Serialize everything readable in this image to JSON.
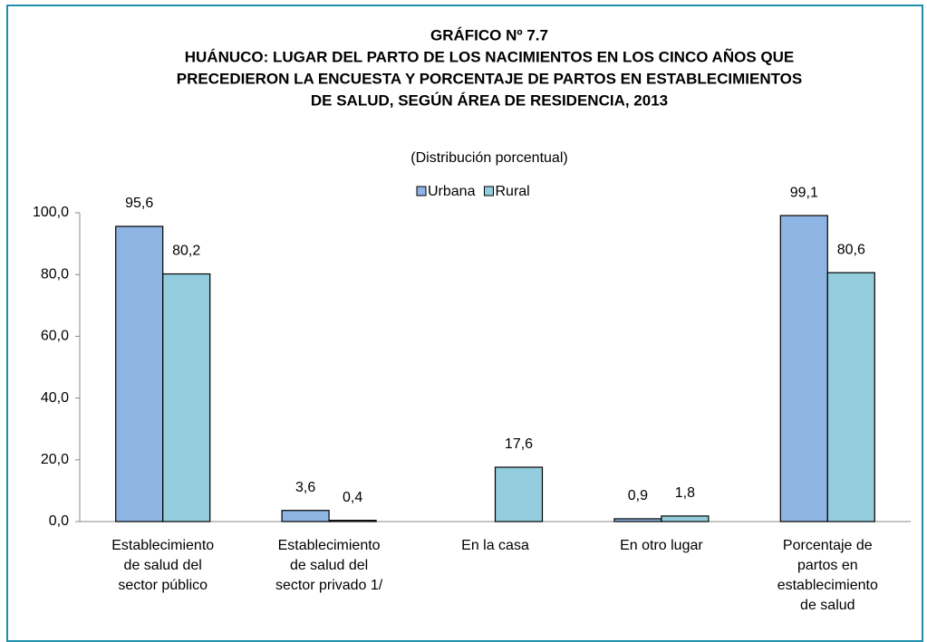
{
  "chart_data": {
    "type": "bar",
    "title": [
      "GRÁFICO Nº 7.7",
      "HUÁNUCO: LUGAR DEL PARTO DE LOS NACIMIENTOS EN LOS CINCO AÑOS QUE",
      "PRECEDIERON LA ENCUESTA Y PORCENTAJE DE PARTOS EN ESTABLECIMIENTOS",
      "DE SALUD, SEGÚN ÁREA DE RESIDENCIA, 2013"
    ],
    "subtitle": "(Distribución porcentual)",
    "categories": [
      [
        "Establecimiento",
        "de salud del",
        "sector público"
      ],
      [
        "Establecimiento",
        "de salud del",
        "sector privado 1/"
      ],
      [
        "En la casa"
      ],
      [
        "En otro lugar"
      ],
      [
        "Porcentaje de",
        "partos en",
        "establecimiento",
        "de salud"
      ]
    ],
    "series": [
      {
        "name": "Urbana",
        "color": "#8eb4e3",
        "values": [
          95.6,
          3.6,
          null,
          0.9,
          99.1
        ],
        "value_labels": [
          "95,6",
          "3,6",
          null,
          "0,9",
          "99,1"
        ]
      },
      {
        "name": "Rural",
        "color": "#93cddd",
        "values": [
          80.2,
          0.4,
          17.6,
          1.8,
          80.6
        ],
        "value_labels": [
          "80,2",
          "0,4",
          "17,6",
          "1,8",
          "80,6"
        ]
      }
    ],
    "ylim": [
      0,
      100
    ],
    "yticks": [
      {
        "value": 0,
        "label": "0,0"
      },
      {
        "value": 20,
        "label": "20,0"
      },
      {
        "value": 40,
        "label": "40,0"
      },
      {
        "value": 60,
        "label": "60,0"
      },
      {
        "value": 80,
        "label": "80,0"
      },
      {
        "value": 100,
        "label": "100,0"
      }
    ],
    "legend": "top"
  }
}
